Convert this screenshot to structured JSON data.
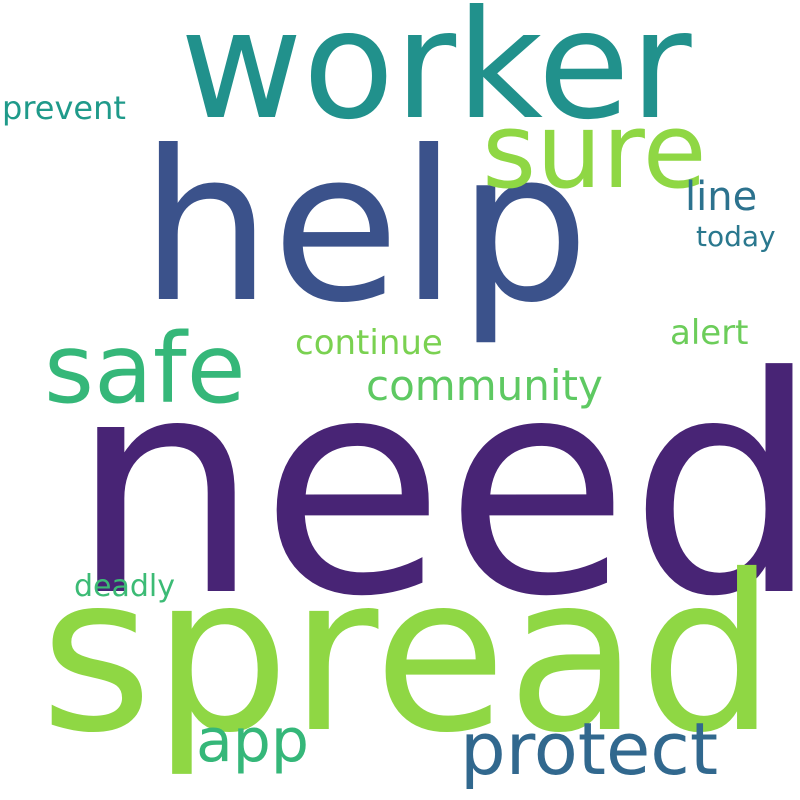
{
  "words": {
    "need": {
      "text": "need",
      "color": "#482475"
    },
    "help": {
      "text": "help",
      "color": "#3b528b"
    },
    "spread": {
      "text": "spread",
      "color": "#8fd744"
    },
    "worker": {
      "text": "worker",
      "color": "#21918c"
    },
    "sure": {
      "text": "sure",
      "color": "#8fd744"
    },
    "safe": {
      "text": "safe",
      "color": "#35b779"
    },
    "protect": {
      "text": "protect",
      "color": "#31688e"
    },
    "app": {
      "text": "app",
      "color": "#35b779"
    },
    "community": {
      "text": "community",
      "color": "#5ec962"
    },
    "line": {
      "text": "line",
      "color": "#2c728e"
    },
    "continue": {
      "text": "continue",
      "color": "#7ad151"
    },
    "alert": {
      "text": "alert",
      "color": "#6ccd5a"
    },
    "prevent": {
      "text": "prevent",
      "color": "#1f9a8a"
    },
    "deadly": {
      "text": "deadly",
      "color": "#3cbb75"
    },
    "today": {
      "text": "today",
      "color": "#2a788e"
    }
  }
}
